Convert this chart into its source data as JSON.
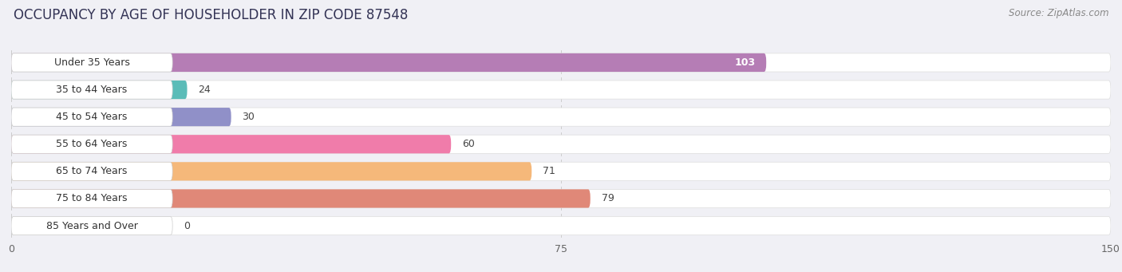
{
  "title": "OCCUPANCY BY AGE OF HOUSEHOLDER IN ZIP CODE 87548",
  "source": "Source: ZipAtlas.com",
  "categories": [
    "Under 35 Years",
    "35 to 44 Years",
    "45 to 54 Years",
    "55 to 64 Years",
    "65 to 74 Years",
    "75 to 84 Years",
    "85 Years and Over"
  ],
  "values": [
    103,
    24,
    30,
    60,
    71,
    79,
    0
  ],
  "bar_colors": [
    "#b57db5",
    "#5bbcb8",
    "#9090c8",
    "#f07caa",
    "#f5b87a",
    "#e08878",
    "#aac8e8"
  ],
  "xlim_max": 150,
  "xticks": [
    0,
    75,
    150
  ],
  "bg_color": "#f0f0f5",
  "bar_row_bg": "#e8e8ee",
  "label_pill_color": "#ffffff",
  "title_fontsize": 12,
  "label_fontsize": 9,
  "value_fontsize": 9
}
